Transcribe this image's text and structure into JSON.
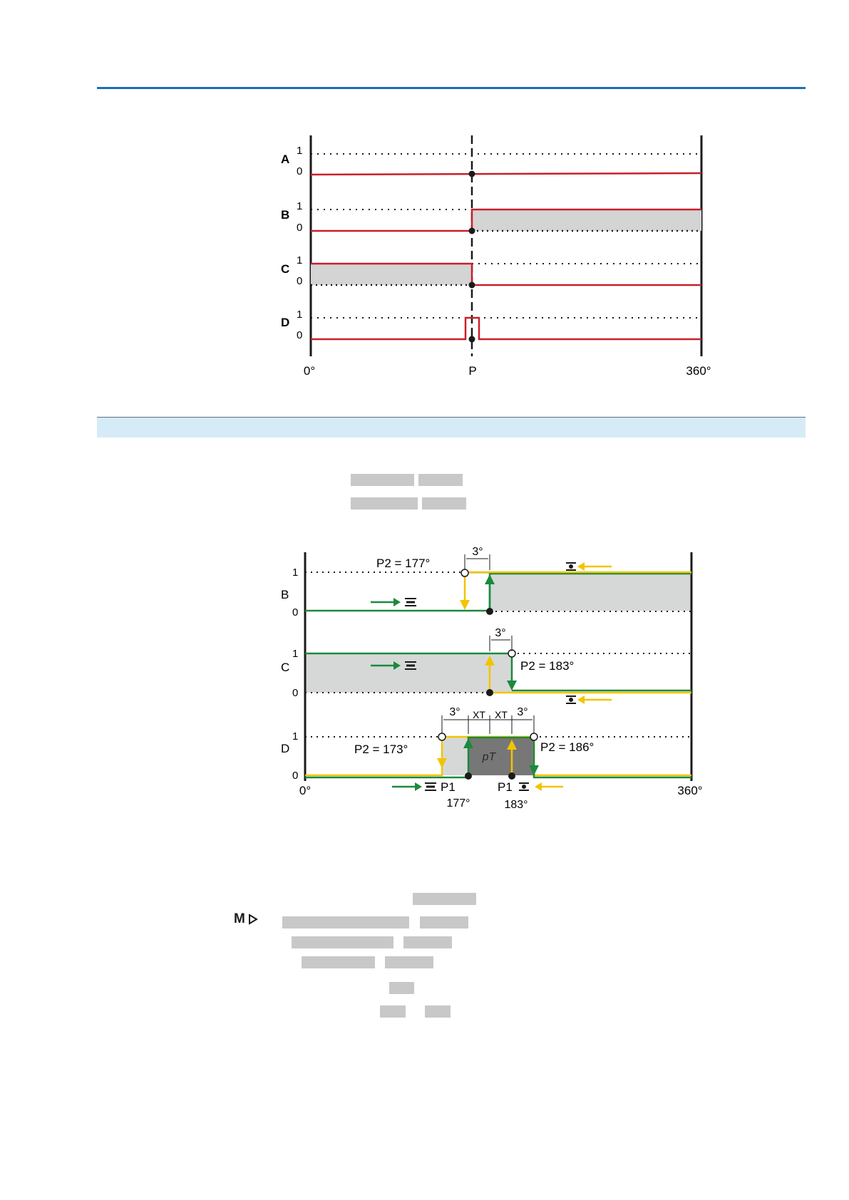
{
  "diagram1": {
    "rows": [
      {
        "id": "A",
        "high": "1",
        "low": "0"
      },
      {
        "id": "B",
        "high": "1",
        "low": "0"
      },
      {
        "id": "C",
        "high": "1",
        "low": "0"
      },
      {
        "id": "D",
        "high": "1",
        "low": "0"
      }
    ],
    "x_start": "0°",
    "x_mid": "P",
    "x_end": "360°"
  },
  "diagram2": {
    "rows": [
      {
        "id": "B",
        "high": "1",
        "low": "0"
      },
      {
        "id": "C",
        "high": "1",
        "low": "0"
      },
      {
        "id": "D",
        "high": "1",
        "low": "0"
      }
    ],
    "x_start": "0°",
    "x_end": "360°",
    "labels": {
      "b_p2": "P2 = 177°",
      "c_p2": "P2 = 183°",
      "d_p2_left": "P2 = 173°",
      "d_p2_right": "P2 = 186°",
      "hyst": "3°",
      "xt": "XT",
      "pt": "pT",
      "p1": "P1",
      "p1_left_angle": "177°",
      "p1_right_angle": "183°"
    },
    "colors": {
      "green": "#1b8a3c",
      "yellow": "#f2c400",
      "red": "#c8202a",
      "fill": "#d6d8d8",
      "dark_fill": "#777777"
    }
  },
  "menu_marker": {
    "label": "M",
    "icon": "play-triangle-icon"
  }
}
